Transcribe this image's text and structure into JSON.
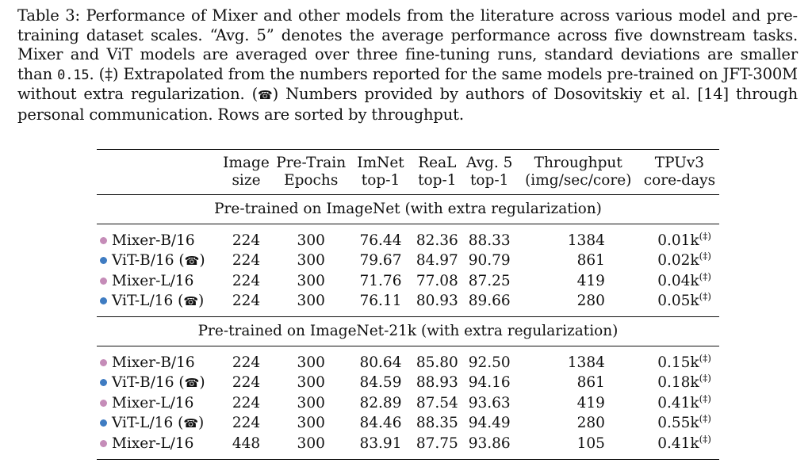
{
  "caption": {
    "lead": "Table 3: Performance of Mixer and other models from the literature across various model and pre-training dataset scales. “Avg. 5” denotes the average performance across five downstream tasks. Mixer and ViT models are averaged over three fine-tuning runs, standard deviations are smaller than ",
    "std_value": "0.15",
    "middle": ". (‡) Extrapolated from the numbers reported for the same models pre-trained on JFT-300M without extra regularization. (",
    "phone_symbol": "☎",
    "tail": ") Numbers provided by authors of Dosovitskiy et al. [14] through personal communication. Rows are sorted by throughput."
  },
  "colors": {
    "mixer_dot": "#c58cb8",
    "vit_dot": "#3f7cc2"
  },
  "table": {
    "headers": [
      {
        "line1": "",
        "line2": ""
      },
      {
        "line1": "Image",
        "line2": "size"
      },
      {
        "line1": "Pre-Train",
        "line2": "Epochs"
      },
      {
        "line1": "ImNet",
        "line2": "top-1"
      },
      {
        "line1": "ReaL",
        "line2": "top-1"
      },
      {
        "line1": "Avg. 5",
        "line2": "top-1"
      },
      {
        "line1": "Throughput",
        "line2": "(img/sec/core)"
      },
      {
        "line1": "TPUv3",
        "line2": "core-days"
      }
    ],
    "sections": [
      {
        "title": "Pre-trained on ImageNet (with extra regularization)",
        "rows": [
          {
            "model": "Mixer-B/16",
            "family": "mixer",
            "phone": false,
            "image_size": "224",
            "epochs": "300",
            "imnet": "76.44",
            "real": "82.36",
            "avg5": "88.33",
            "throughput": "1384",
            "tpu": "0.01k",
            "mark": "(‡)"
          },
          {
            "model": "ViT-B/16 (",
            "family": "vit",
            "phone": true,
            "image_size": "224",
            "epochs": "300",
            "imnet": "79.67",
            "real": "84.97",
            "avg5": "90.79",
            "throughput": "861",
            "tpu": "0.02k",
            "mark": "(‡)"
          },
          {
            "model": "Mixer-L/16",
            "family": "mixer",
            "phone": false,
            "image_size": "224",
            "epochs": "300",
            "imnet": "71.76",
            "real": "77.08",
            "avg5": "87.25",
            "throughput": "419",
            "tpu": "0.04k",
            "mark": "(‡)"
          },
          {
            "model": "ViT-L/16 (",
            "family": "vit",
            "phone": true,
            "image_size": "224",
            "epochs": "300",
            "imnet": "76.11",
            "real": "80.93",
            "avg5": "89.66",
            "throughput": "280",
            "tpu": "0.05k",
            "mark": "(‡)"
          }
        ]
      },
      {
        "title": "Pre-trained on ImageNet-21k (with extra regularization)",
        "rows": [
          {
            "model": "Mixer-B/16",
            "family": "mixer",
            "phone": false,
            "image_size": "224",
            "epochs": "300",
            "imnet": "80.64",
            "real": "85.80",
            "avg5": "92.50",
            "throughput": "1384",
            "tpu": "0.15k",
            "mark": "(‡)"
          },
          {
            "model": "ViT-B/16 (",
            "family": "vit",
            "phone": true,
            "image_size": "224",
            "epochs": "300",
            "imnet": "84.59",
            "real": "88.93",
            "avg5": "94.16",
            "throughput": "861",
            "tpu": "0.18k",
            "mark": "(‡)"
          },
          {
            "model": "Mixer-L/16",
            "family": "mixer",
            "phone": false,
            "image_size": "224",
            "epochs": "300",
            "imnet": "82.89",
            "real": "87.54",
            "avg5": "93.63",
            "throughput": "419",
            "tpu": "0.41k",
            "mark": "(‡)"
          },
          {
            "model": "ViT-L/16 (",
            "family": "vit",
            "phone": true,
            "image_size": "224",
            "epochs": "300",
            "imnet": "84.46",
            "real": "88.35",
            "avg5": "94.49",
            "throughput": "280",
            "tpu": "0.55k",
            "mark": "(‡)"
          },
          {
            "model": "Mixer-L/16",
            "family": "mixer",
            "phone": false,
            "image_size": "448",
            "epochs": "300",
            "imnet": "83.91",
            "real": "87.75",
            "avg5": "93.86",
            "throughput": "105",
            "tpu": "0.41k",
            "mark": "(‡)"
          }
        ]
      }
    ]
  }
}
